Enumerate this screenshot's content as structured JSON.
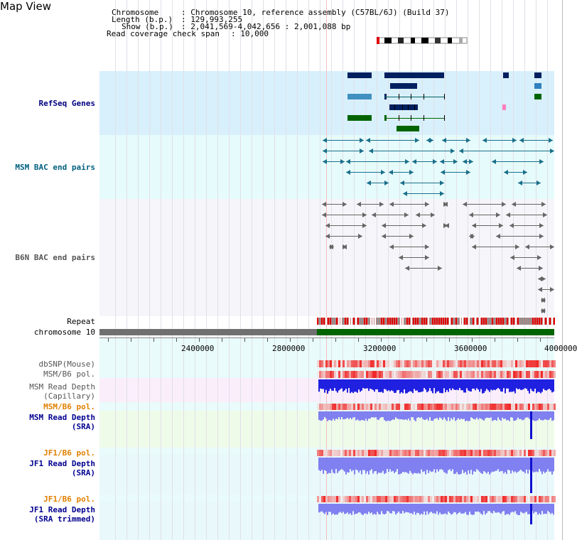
{
  "header": {
    "title": "Map View",
    "chromosome_label": "Chromosome",
    "chromosome_value": ": Chromosome 10, reference assembly (C57BL/6J) (Build 37)",
    "length_label": "Length (b.p.)",
    "length_value": ": 129,993,255",
    "show_label": "Show (b.p.)",
    "show_value": ": 2,041,569-4,042,656 : 2,001,088 bp",
    "coverage_label": "Read coverage check span",
    "coverage_value": ": 10,000"
  },
  "tracks": {
    "refseq": "RefSeq Genes",
    "msm_bac": "MSM BAC end pairs",
    "b6n_bac": "B6N BAC end pairs",
    "repeat": "Repeat",
    "chromosome": "chromosome 10",
    "dbsnp": "dbSNP(Mouse)",
    "msm_b6_pol_1": "MSM/B6 pol.",
    "msm_depth_cap_1": "MSM Read Depth",
    "msm_depth_cap_2": "(Capillary)",
    "msm_b6_pol_2": "MSM/B6 pol.",
    "msm_depth_sra_1": "MSM Read Depth",
    "msm_depth_sra_2": "(SRA)",
    "jf1_b6_pol_1": "JF1/B6 pol.",
    "jf1_depth_sra_1": "JF1 Read Depth",
    "jf1_depth_sra_2": "(SRA)",
    "jf1_b6_pol_2": "JF1/B6 pol.",
    "jf1_depth_trim_1": "JF1 Read Depth",
    "jf1_depth_trim_2": "(SRA trimmed)"
  },
  "axis": {
    "ticks": [
      "2400000",
      "2800000",
      "3200000",
      "3600000",
      "4000000"
    ]
  },
  "colors": {
    "refseq_label": "#000080",
    "msm_bac_label": "#006080",
    "b6n_bac_label": "#555555",
    "orange_label": "#e08000",
    "blue_label": "#000090",
    "refseq_bg": "#d8f0fb",
    "msm_bac_bg": "#e6fbfb",
    "b6n_bg": "#f5f5fa",
    "chromosome_bar": "#006400",
    "chromosome_gap": "#707070",
    "coverage_blue": "#2020e0",
    "coverage_light": "#8080f0"
  }
}
